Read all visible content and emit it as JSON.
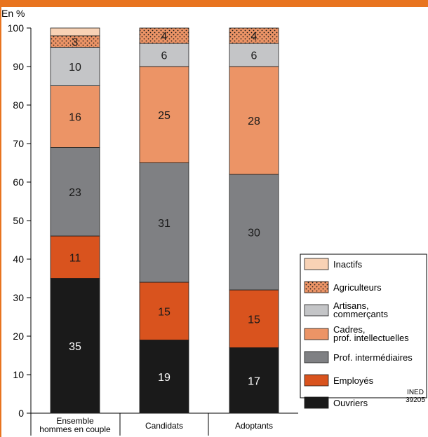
{
  "chart_data": {
    "type": "bar",
    "stacked": true,
    "ylabel": "En %",
    "ylim": [
      0,
      100
    ],
    "yticks": [
      0,
      10,
      20,
      30,
      40,
      50,
      60,
      70,
      80,
      90,
      100
    ],
    "categories": [
      [
        "Ensemble",
        "hommes en couple"
      ],
      [
        "Candidats"
      ],
      [
        "Adoptants"
      ]
    ],
    "series": [
      {
        "name": "Ouvriers",
        "values": [
          35,
          19,
          17
        ],
        "color": "#1a1a1a",
        "label_color": "#ffffff",
        "legend": [
          "Ouvriers"
        ]
      },
      {
        "name": "Employés",
        "values": [
          11,
          15,
          15
        ],
        "color": "#d9531e",
        "label_color": "#1a1a1a",
        "legend": [
          "Employés"
        ]
      },
      {
        "name": "Prof. intermédiaires",
        "values": [
          23,
          31,
          30
        ],
        "color": "#7f8083",
        "label_color": "#1a1a1a",
        "legend": [
          "Prof. intermédiaires"
        ]
      },
      {
        "name": "Cadres, prof. intellectuelles",
        "values": [
          16,
          25,
          28
        ],
        "color": "#ec9466",
        "label_color": "#1a1a1a",
        "legend": [
          "Cadres,",
          "prof. intellectuelles"
        ]
      },
      {
        "name": "Artisans, commerçants",
        "values": [
          10,
          6,
          6
        ],
        "color": "#c4c5c7",
        "label_color": "#1a1a1a",
        "legend": [
          "Artisans,",
          "commerçants"
        ]
      },
      {
        "name": "Agriculteurs",
        "values": [
          3,
          4,
          4
        ],
        "color": "#ec9466",
        "pattern": "dots",
        "label_color": "#1a1a1a",
        "legend": [
          "Agriculteurs"
        ]
      },
      {
        "name": "Inactifs",
        "values": [
          2,
          0,
          0
        ],
        "color": "#f8d2b5",
        "label_color": "#1a1a1a",
        "legend": [
          "Inactifs"
        ],
        "show_labels": false
      }
    ],
    "source_note": [
      "INED",
      "39205"
    ],
    "grid": false,
    "legend_position": "bottom-right",
    "colors": {
      "border": "#e8741f",
      "axis": "#000000"
    }
  }
}
